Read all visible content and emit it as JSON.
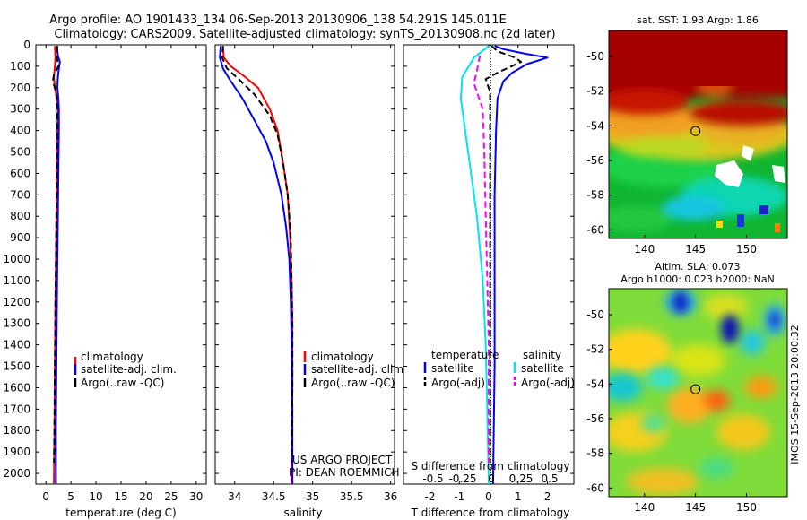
{
  "header": {
    "line1": "Argo profile: AO 1901433_134 06-Sep-2013 20130906_138 54.291S 145.011E",
    "line2": "Climatology: CARS2009. Satellite-adjusted climatology: synTS_20130908.nc (2d later)"
  },
  "chart_data": [
    {
      "type": "line",
      "xlabel": "temperature (deg C)",
      "xticks": [
        0,
        5,
        10,
        15,
        20,
        25,
        30
      ],
      "xlim": [
        -2,
        32
      ],
      "yticks": [
        0,
        100,
        200,
        300,
        400,
        500,
        600,
        700,
        800,
        900,
        1000,
        1100,
        1200,
        1300,
        1400,
        1500,
        1600,
        1700,
        1800,
        1900,
        2000
      ],
      "ylim": [
        2050,
        0
      ],
      "legend": [
        "climatology",
        "satellite-adj. clim.",
        "Argo(..raw -QC)"
      ],
      "series": [
        {
          "name": "climatology",
          "color": "#ff0000",
          "style": "solid",
          "points": [
            [
              1.8,
              5
            ],
            [
              1.9,
              60
            ],
            [
              1.8,
              100
            ],
            [
              1.6,
              150
            ],
            [
              1.8,
              200
            ],
            [
              2.2,
              250
            ],
            [
              2.4,
              300
            ],
            [
              2.3,
              400
            ],
            [
              2.2,
              600
            ],
            [
              2.1,
              800
            ],
            [
              2.0,
              1000
            ],
            [
              1.9,
              1200
            ],
            [
              1.8,
              1500
            ],
            [
              1.7,
              1800
            ],
            [
              1.6,
              2050
            ]
          ]
        },
        {
          "name": "satellite-adj. clim.",
          "color": "#0000ff",
          "style": "solid",
          "points": [
            [
              2.2,
              5
            ],
            [
              2.4,
              50
            ],
            [
              2.8,
              80
            ],
            [
              2.6,
              110
            ],
            [
              2.4,
              150
            ],
            [
              2.3,
              200
            ],
            [
              2.5,
              250
            ],
            [
              2.6,
              300
            ],
            [
              2.6,
              400
            ],
            [
              2.5,
              600
            ],
            [
              2.4,
              800
            ],
            [
              2.3,
              1000
            ],
            [
              2.2,
              1200
            ],
            [
              2.1,
              1500
            ],
            [
              2.0,
              1800
            ],
            [
              2.0,
              2050
            ]
          ]
        },
        {
          "name": "Argo(..raw -QC)",
          "color": "#000000",
          "style": "dash",
          "points": [
            [
              2.3,
              5
            ],
            [
              2.2,
              60
            ],
            [
              2.5,
              100
            ],
            [
              1.6,
              140
            ],
            [
              1.4,
              170
            ],
            [
              2.0,
              220
            ],
            [
              2.3,
              300
            ],
            [
              2.3,
              400
            ],
            [
              2.2,
              600
            ],
            [
              2.1,
              800
            ],
            [
              2.0,
              1000
            ],
            [
              1.9,
              1200
            ],
            [
              1.8,
              1500
            ],
            [
              1.7,
              1800
            ],
            [
              1.6,
              1950
            ]
          ]
        }
      ]
    },
    {
      "type": "line",
      "xlabel": "salinity",
      "xticks": [
        34,
        34.5,
        35,
        35.5,
        36
      ],
      "xlim": [
        33.75,
        36.05
      ],
      "yticks": [
        0,
        100,
        200,
        300,
        400,
        500,
        600,
        700,
        800,
        900,
        1000,
        1100,
        1200,
        1300,
        1400,
        1500,
        1600,
        1700,
        1800,
        1900,
        2000
      ],
      "ylim": [
        2050,
        0
      ],
      "legend": [
        "climatology",
        "satellite-adj. clim.",
        "Argo(..raw -QC)"
      ],
      "credits": [
        "US ARGO PROJECT",
        "PI: DEAN ROEMMICH"
      ],
      "series": [
        {
          "name": "climatology",
          "color": "#ff0000",
          "style": "solid",
          "points": [
            [
              33.85,
              5
            ],
            [
              33.86,
              60
            ],
            [
              33.95,
              100
            ],
            [
              34.1,
              140
            ],
            [
              34.3,
              200
            ],
            [
              34.45,
              300
            ],
            [
              34.55,
              400
            ],
            [
              34.62,
              550
            ],
            [
              34.68,
              700
            ],
            [
              34.71,
              900
            ],
            [
              34.73,
              1100
            ],
            [
              34.74,
              1300
            ],
            [
              34.74,
              1600
            ],
            [
              34.73,
              2050
            ]
          ]
        },
        {
          "name": "satellite-adj. clim.",
          "color": "#0000ff",
          "style": "solid",
          "points": [
            [
              33.82,
              5
            ],
            [
              33.81,
              60
            ],
            [
              33.85,
              110
            ],
            [
              33.95,
              170
            ],
            [
              34.1,
              250
            ],
            [
              34.25,
              350
            ],
            [
              34.4,
              450
            ],
            [
              34.5,
              550
            ],
            [
              34.6,
              700
            ],
            [
              34.66,
              850
            ],
            [
              34.7,
              1000
            ],
            [
              34.72,
              1200
            ],
            [
              34.73,
              1400
            ],
            [
              34.74,
              1700
            ],
            [
              34.74,
              2050
            ]
          ]
        },
        {
          "name": "Argo(..raw -QC)",
          "color": "#000000",
          "style": "dash",
          "points": [
            [
              33.85,
              5
            ],
            [
              33.84,
              60
            ],
            [
              33.9,
              110
            ],
            [
              34.05,
              160
            ],
            [
              34.25,
              230
            ],
            [
              34.45,
              330
            ],
            [
              34.55,
              420
            ],
            [
              34.62,
              550
            ],
            [
              34.68,
              700
            ],
            [
              34.72,
              900
            ],
            [
              34.73,
              1100
            ],
            [
              34.74,
              1300
            ],
            [
              34.74,
              1600
            ],
            [
              34.73,
              1950
            ]
          ]
        }
      ]
    },
    {
      "type": "line",
      "xlabel": "T difference from climatology",
      "xticks": [
        -2,
        -1,
        0,
        1,
        2
      ],
      "xlim": [
        -2.9,
        2.9
      ],
      "x2label": "S difference from climatology",
      "x2ticks": [
        "-0.5",
        "-0.25",
        "0",
        "0.25",
        "0.5"
      ],
      "yticks": [
        0,
        100,
        200,
        300,
        400,
        500,
        600,
        700,
        800,
        900,
        1000,
        1100,
        1200,
        1300,
        1400,
        1500,
        1600,
        1700,
        1800,
        1900,
        2000
      ],
      "ylim": [
        2050,
        0
      ],
      "legend_groups": [
        "temperature",
        "salinity"
      ],
      "legend": [
        "satellite",
        "Argo(-adj)",
        "satellite",
        "Argo(-adj)"
      ],
      "series": [
        {
          "name": "satellite",
          "group": "temperature",
          "color": "#0000ff",
          "style": "solid",
          "points": [
            [
              0.2,
              5
            ],
            [
              0.5,
              20
            ],
            [
              1.2,
              40
            ],
            [
              2.0,
              60
            ],
            [
              1.3,
              90
            ],
            [
              0.8,
              130
            ],
            [
              0.5,
              170
            ],
            [
              0.3,
              250
            ],
            [
              0.25,
              400
            ],
            [
              0.2,
              700
            ],
            [
              0.2,
              1100
            ],
            [
              0.2,
              1500
            ],
            [
              0.15,
              2050
            ]
          ]
        },
        {
          "name": "Argo(-adj)",
          "group": "temperature",
          "color": "#000000",
          "style": "dash",
          "points": [
            [
              0.1,
              5
            ],
            [
              0.3,
              30
            ],
            [
              0.9,
              60
            ],
            [
              1.1,
              80
            ],
            [
              0.3,
              130
            ],
            [
              -0.1,
              160
            ],
            [
              0.05,
              220
            ],
            [
              0.05,
              400
            ],
            [
              0.05,
              800
            ],
            [
              0.05,
              1200
            ],
            [
              0.05,
              1600
            ],
            [
              0.05,
              1950
            ]
          ]
        },
        {
          "name": "satellite",
          "group": "salinity",
          "color": "#00e5e5",
          "style": "solid",
          "points": [
            [
              0,
              5
            ],
            [
              -0.5,
              60
            ],
            [
              -0.9,
              150
            ],
            [
              -0.95,
              250
            ],
            [
              -0.8,
              400
            ],
            [
              -0.6,
              600
            ],
            [
              -0.4,
              800
            ],
            [
              -0.2,
              1100
            ],
            [
              -0.1,
              1400
            ],
            [
              -0.05,
              1700
            ],
            [
              0,
              2050
            ]
          ]
        },
        {
          "name": "Argo(-adj)",
          "group": "salinity",
          "color": "#ff00ff",
          "style": "dash",
          "points": [
            [
              -0.3,
              50
            ],
            [
              -0.4,
              120
            ],
            [
              -0.5,
              180
            ],
            [
              -0.2,
              300
            ],
            [
              -0.15,
              500
            ],
            [
              -0.1,
              800
            ],
            [
              -0.05,
              1100
            ],
            [
              0,
              1400
            ],
            [
              0,
              1700
            ],
            [
              0,
              1950
            ]
          ]
        }
      ]
    }
  ],
  "maps": [
    {
      "title": "sat. SST: 1.93 Argo: 1.86",
      "xticks": [
        "140",
        "145",
        "150"
      ],
      "yticks": [
        "-50",
        "-52",
        "-54",
        "-56",
        "-58",
        "-60"
      ],
      "marker": {
        "lon": 145,
        "lat": -54.3
      }
    },
    {
      "title_line1": "Altim. SLA: 0.073",
      "title_line2": "Argo h1000: 0.023 h2000: NaN",
      "xticks": [
        "140",
        "145",
        "150"
      ],
      "yticks": [
        "-50",
        "-52",
        "-54",
        "-56",
        "-58",
        "-60"
      ],
      "marker": {
        "lon": 145,
        "lat": -54.3
      }
    }
  ],
  "footer": {
    "vertical_stamp": "IMOS 15-Sep-2013 20:00:32"
  }
}
